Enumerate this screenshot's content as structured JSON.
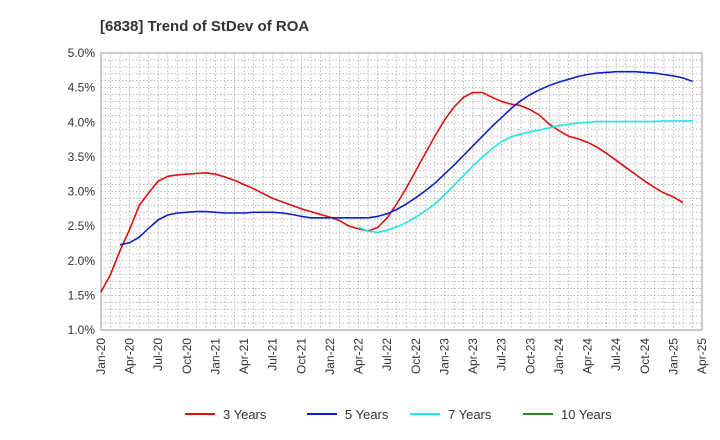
{
  "chart_data": {
    "type": "line",
    "title": "[6838]  Trend of StDev of ROA",
    "xlabel": "",
    "ylabel": "",
    "x_ticks": [
      "Jan-20",
      "Apr-20",
      "Jul-20",
      "Oct-20",
      "Jan-21",
      "Apr-21",
      "Jul-21",
      "Oct-21",
      "Jan-22",
      "Apr-22",
      "Jul-22",
      "Oct-22",
      "Jan-23",
      "Apr-23",
      "Jul-23",
      "Oct-23",
      "Jan-24",
      "Apr-24",
      "Jul-24",
      "Oct-24",
      "Jan-25",
      "Apr-25"
    ],
    "y_ticks": [
      "1.0%",
      "1.5%",
      "2.0%",
      "2.5%",
      "3.0%",
      "3.5%",
      "4.0%",
      "4.5%",
      "5.0%"
    ],
    "ylim": [
      1.0,
      5.0
    ],
    "xlim": [
      "Jan-20",
      "Apr-25"
    ],
    "grid": true,
    "legend_position": "bottom",
    "series": [
      {
        "name": "3 Years",
        "color": "#dd1111",
        "points": [
          [
            "Jan-20",
            1.55
          ],
          [
            "Feb-20",
            1.8
          ],
          [
            "Mar-20",
            2.15
          ],
          [
            "Apr-20",
            2.45
          ],
          [
            "May-20",
            2.8
          ],
          [
            "Jun-20",
            2.98
          ],
          [
            "Jul-20",
            3.15
          ],
          [
            "Aug-20",
            3.22
          ],
          [
            "Sep-20",
            3.24
          ],
          [
            "Oct-20",
            3.25
          ],
          [
            "Nov-20",
            3.26
          ],
          [
            "Dec-20",
            3.27
          ],
          [
            "Jan-21",
            3.25
          ],
          [
            "Feb-21",
            3.21
          ],
          [
            "Mar-21",
            3.16
          ],
          [
            "Apr-21",
            3.1
          ],
          [
            "May-21",
            3.04
          ],
          [
            "Jun-21",
            2.97
          ],
          [
            "Jul-21",
            2.9
          ],
          [
            "Aug-21",
            2.85
          ],
          [
            "Sep-21",
            2.8
          ],
          [
            "Oct-21",
            2.75
          ],
          [
            "Nov-21",
            2.71
          ],
          [
            "Dec-21",
            2.67
          ],
          [
            "Jan-22",
            2.63
          ],
          [
            "Feb-22",
            2.58
          ],
          [
            "Mar-22",
            2.5
          ],
          [
            "Apr-22",
            2.46
          ],
          [
            "May-22",
            2.43
          ],
          [
            "Jun-22",
            2.48
          ],
          [
            "Jul-22",
            2.62
          ],
          [
            "Aug-22",
            2.82
          ],
          [
            "Sep-22",
            3.05
          ],
          [
            "Oct-22",
            3.3
          ],
          [
            "Nov-22",
            3.55
          ],
          [
            "Dec-22",
            3.8
          ],
          [
            "Jan-23",
            4.03
          ],
          [
            "Feb-23",
            4.22
          ],
          [
            "Mar-23",
            4.36
          ],
          [
            "Apr-23",
            4.43
          ],
          [
            "May-23",
            4.43
          ],
          [
            "Jun-23",
            4.36
          ],
          [
            "Jul-23",
            4.3
          ],
          [
            "Aug-23",
            4.26
          ],
          [
            "Sep-23",
            4.24
          ],
          [
            "Oct-23",
            4.18
          ],
          [
            "Nov-23",
            4.1
          ],
          [
            "Dec-23",
            3.97
          ],
          [
            "Jan-24",
            3.88
          ],
          [
            "Feb-24",
            3.8
          ],
          [
            "Mar-24",
            3.76
          ],
          [
            "Apr-24",
            3.71
          ],
          [
            "May-24",
            3.64
          ],
          [
            "Jun-24",
            3.55
          ],
          [
            "Jul-24",
            3.45
          ],
          [
            "Aug-24",
            3.35
          ],
          [
            "Sep-24",
            3.25
          ],
          [
            "Oct-24",
            3.15
          ],
          [
            "Nov-24",
            3.06
          ],
          [
            "Dec-24",
            2.98
          ],
          [
            "Jan-25",
            2.92
          ],
          [
            "Feb-25",
            2.84
          ]
        ]
      },
      {
        "name": "5 Years",
        "color": "#1020c8",
        "points": [
          [
            "Mar-20",
            2.23
          ],
          [
            "Apr-20",
            2.26
          ],
          [
            "May-20",
            2.34
          ],
          [
            "Jun-20",
            2.47
          ],
          [
            "Jul-20",
            2.59
          ],
          [
            "Aug-20",
            2.66
          ],
          [
            "Sep-20",
            2.69
          ],
          [
            "Oct-20",
            2.7
          ],
          [
            "Nov-20",
            2.71
          ],
          [
            "Dec-20",
            2.71
          ],
          [
            "Jan-21",
            2.7
          ],
          [
            "Feb-21",
            2.69
          ],
          [
            "Mar-21",
            2.69
          ],
          [
            "Apr-21",
            2.69
          ],
          [
            "May-21",
            2.7
          ],
          [
            "Jun-21",
            2.7
          ],
          [
            "Jul-21",
            2.7
          ],
          [
            "Aug-21",
            2.69
          ],
          [
            "Sep-21",
            2.67
          ],
          [
            "Oct-21",
            2.64
          ],
          [
            "Nov-21",
            2.62
          ],
          [
            "Dec-21",
            2.62
          ],
          [
            "Jan-22",
            2.62
          ],
          [
            "Feb-22",
            2.62
          ],
          [
            "Mar-22",
            2.62
          ],
          [
            "Apr-22",
            2.62
          ],
          [
            "May-22",
            2.62
          ],
          [
            "Jun-22",
            2.64
          ],
          [
            "Jul-22",
            2.68
          ],
          [
            "Aug-22",
            2.74
          ],
          [
            "Sep-22",
            2.82
          ],
          [
            "Oct-22",
            2.91
          ],
          [
            "Nov-22",
            3.01
          ],
          [
            "Dec-22",
            3.12
          ],
          [
            "Jan-23",
            3.25
          ],
          [
            "Feb-23",
            3.38
          ],
          [
            "Mar-23",
            3.52
          ],
          [
            "Apr-23",
            3.66
          ],
          [
            "May-23",
            3.8
          ],
          [
            "Jun-23",
            3.94
          ],
          [
            "Jul-23",
            4.07
          ],
          [
            "Aug-23",
            4.2
          ],
          [
            "Sep-23",
            4.31
          ],
          [
            "Oct-23",
            4.4
          ],
          [
            "Nov-23",
            4.47
          ],
          [
            "Dec-23",
            4.53
          ],
          [
            "Jan-24",
            4.58
          ],
          [
            "Feb-24",
            4.62
          ],
          [
            "Mar-24",
            4.66
          ],
          [
            "Apr-24",
            4.69
          ],
          [
            "May-24",
            4.71
          ],
          [
            "Jun-24",
            4.72
          ],
          [
            "Jul-24",
            4.73
          ],
          [
            "Aug-24",
            4.73
          ],
          [
            "Sep-24",
            4.73
          ],
          [
            "Oct-24",
            4.72
          ],
          [
            "Nov-24",
            4.71
          ],
          [
            "Dec-24",
            4.69
          ],
          [
            "Jan-25",
            4.67
          ],
          [
            "Feb-25",
            4.64
          ],
          [
            "Mar-25",
            4.59
          ]
        ]
      },
      {
        "name": "7 Years",
        "color": "#22e6e6",
        "points": [
          [
            "Apr-22",
            2.48
          ],
          [
            "May-22",
            2.43
          ],
          [
            "Jun-22",
            2.41
          ],
          [
            "Jul-22",
            2.44
          ],
          [
            "Aug-22",
            2.49
          ],
          [
            "Sep-22",
            2.55
          ],
          [
            "Oct-22",
            2.63
          ],
          [
            "Nov-22",
            2.72
          ],
          [
            "Dec-22",
            2.82
          ],
          [
            "Jan-23",
            2.95
          ],
          [
            "Feb-23",
            3.09
          ],
          [
            "Mar-23",
            3.23
          ],
          [
            "Apr-23",
            3.37
          ],
          [
            "May-23",
            3.5
          ],
          [
            "Jun-23",
            3.62
          ],
          [
            "Jul-23",
            3.72
          ],
          [
            "Aug-23",
            3.79
          ],
          [
            "Sep-23",
            3.83
          ],
          [
            "Oct-23",
            3.86
          ],
          [
            "Nov-23",
            3.89
          ],
          [
            "Dec-23",
            3.92
          ],
          [
            "Jan-24",
            3.95
          ],
          [
            "Feb-24",
            3.97
          ],
          [
            "Mar-24",
            3.99
          ],
          [
            "Apr-24",
            4.0
          ],
          [
            "May-24",
            4.01
          ],
          [
            "Jun-24",
            4.01
          ],
          [
            "Jul-24",
            4.01
          ],
          [
            "Aug-24",
            4.01
          ],
          [
            "Sep-24",
            4.01
          ],
          [
            "Oct-24",
            4.01
          ],
          [
            "Nov-24",
            4.01
          ],
          [
            "Dec-24",
            4.02
          ],
          [
            "Jan-25",
            4.02
          ],
          [
            "Feb-25",
            4.02
          ],
          [
            "Mar-25",
            4.02
          ]
        ]
      },
      {
        "name": "10 Years",
        "color": "#228822",
        "points": []
      }
    ]
  }
}
